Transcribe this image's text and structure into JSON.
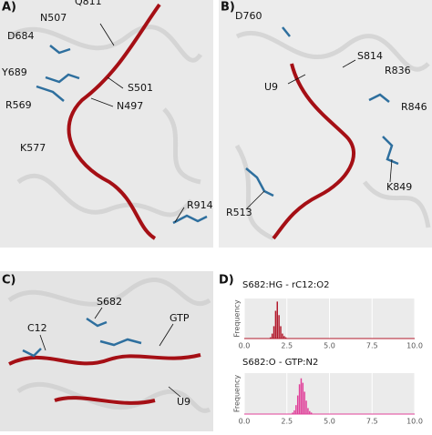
{
  "panels": [
    {
      "label": "A)",
      "annotations": [
        "Q811",
        "N507",
        "D684",
        "Y689",
        "R569",
        "K577",
        "S501",
        "N497",
        "R914"
      ]
    },
    {
      "label": "B)",
      "annotations": [
        "D760",
        "S814",
        "R836",
        "U9",
        "R846",
        "R513",
        "K849"
      ]
    },
    {
      "label": "C)",
      "annotations": [
        "S682",
        "C12",
        "GTP",
        "U9"
      ]
    },
    {
      "label": "D)"
    }
  ],
  "chart_data": [
    {
      "type": "histogram",
      "title": "S682:HG - rC12:O2",
      "ylabel": "Frequency",
      "color": "#b2182b",
      "bins": [
        1.5,
        1.6,
        1.7,
        1.8,
        1.9,
        2.0,
        2.1,
        2.2,
        2.3,
        2.4,
        2.5
      ],
      "values": [
        2,
        8,
        20,
        45,
        60,
        38,
        20,
        8,
        4,
        2
      ],
      "xlim": [
        0,
        10
      ],
      "ylim": [
        0,
        65
      ],
      "xticks": [
        {
          "value": 0,
          "label": "0.0"
        },
        {
          "value": 2.5,
          "label": "2.5"
        },
        {
          "value": 5,
          "label": "5.0"
        },
        {
          "value": 7.5,
          "label": "7.5"
        },
        {
          "value": 10,
          "label": "10.0"
        }
      ],
      "grid": true
    },
    {
      "type": "histogram",
      "title": "S682:O - GTP:N2",
      "ylabel": "Frequency",
      "color": "#e0409a",
      "bins": [
        2.8,
        2.9,
        3.0,
        3.1,
        3.2,
        3.3,
        3.4,
        3.5,
        3.6,
        3.7,
        3.8,
        3.9,
        4.0
      ],
      "values": [
        2,
        5,
        12,
        25,
        40,
        48,
        42,
        30,
        18,
        8,
        4,
        2
      ],
      "xlim": [
        0,
        10
      ],
      "ylim": [
        0,
        55
      ],
      "xticks": [
        {
          "value": 0,
          "label": "0.0"
        },
        {
          "value": 2.5,
          "label": "2.5"
        },
        {
          "value": 5,
          "label": "5.0"
        },
        {
          "value": 7.5,
          "label": "7.5"
        },
        {
          "value": 10,
          "label": "10.0"
        }
      ],
      "grid": true
    }
  ]
}
